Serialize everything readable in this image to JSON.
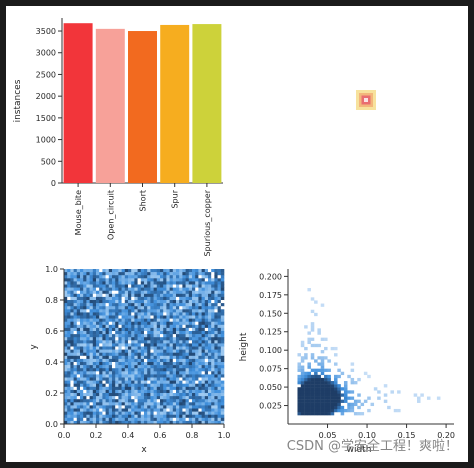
{
  "watermark": "CSDN @学安全工程！爽啦！",
  "chart_data": [
    {
      "type": "bar",
      "ylabel": "instances",
      "ylim": [
        0,
        3800
      ],
      "yticks": [
        0,
        500,
        1000,
        1500,
        2000,
        2500,
        3000,
        3500
      ],
      "categories": [
        "Mouse_bite",
        "Open_circuit",
        "Short",
        "Spur",
        "Spurious_copper"
      ],
      "values": [
        3680,
        3550,
        3500,
        3640,
        3660
      ],
      "colors": [
        "#f2353a",
        "#f7a199",
        "#f26a1f",
        "#f6ad1f",
        "#cdd23a"
      ]
    },
    {
      "type": "scatter",
      "description": "box overlay glyph",
      "colors": [
        "#f6dd8c",
        "#f2b37a",
        "#e96d70",
        "#fbe2e3"
      ]
    },
    {
      "type": "heatmap",
      "xlabel": "x",
      "ylabel": "y",
      "xlim": [
        0,
        1
      ],
      "ylim": [
        0,
        1
      ],
      "xticks": [
        "0.0",
        "0.2",
        "0.4",
        "0.6",
        "0.8",
        "1.0"
      ],
      "yticks": [
        "0.0",
        "0.2",
        "0.4",
        "0.6",
        "0.8",
        "1.0"
      ],
      "bins": 50,
      "color": "#2b7bd0"
    },
    {
      "type": "heatmap",
      "xlabel": "width",
      "ylabel": "height",
      "xlim": [
        0,
        0.21
      ],
      "ylim": [
        0,
        0.21
      ],
      "xticks": [
        "0.05",
        "0.10",
        "0.15",
        "0.20"
      ],
      "yticks": [
        "0.025",
        "0.050",
        "0.075",
        "0.100",
        "0.125",
        "0.150",
        "0.175",
        "0.200"
      ],
      "bins": 45,
      "color": "#2b7bd0"
    }
  ]
}
